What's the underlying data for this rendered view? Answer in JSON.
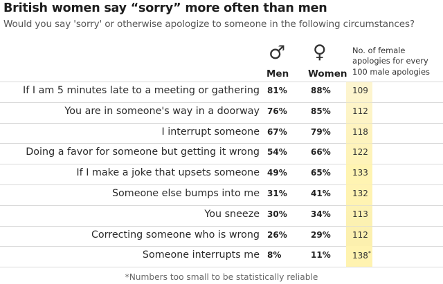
{
  "title": "British women say “sorry” more often than men",
  "subtitle": "Would you say 'sorry' or otherwise apologize to someone in the following circumstances?",
  "headers": {
    "men_symbol": "♂",
    "women_symbol": "♀",
    "men": "Men",
    "women": "Women",
    "ratio_line1": "No. of female",
    "ratio_line2": "apologies for every",
    "ratio_line3": "100 male apologies"
  },
  "footnote": "*Numbers too small to be statistically reliable",
  "colors": {
    "ratio_highlight": "#fff3b0",
    "ratio_band_top": "#fdf6dc",
    "ratio_band_bottom": "#fbeea6",
    "rule": "#d9d9d9"
  },
  "chart_data": {
    "type": "table",
    "columns": [
      "Men",
      "Women",
      "No. of female apologies for every 100 male apologies"
    ],
    "rows": [
      {
        "label": "If I am 5 minutes late to a meeting or gathering",
        "men": "81%",
        "women": "88%",
        "ratio": "109",
        "note": ""
      },
      {
        "label": "You are in someone's way in a doorway",
        "men": "76%",
        "women": "85%",
        "ratio": "112",
        "note": ""
      },
      {
        "label": "I interrupt someone",
        "men": "67%",
        "women": "79%",
        "ratio": "118",
        "note": ""
      },
      {
        "label": "Doing a favor for someone but getting it wrong",
        "men": "54%",
        "women": "66%",
        "ratio": "122",
        "note": ""
      },
      {
        "label": "If I make a joke that upsets someone",
        "men": "49%",
        "women": "65%",
        "ratio": "133",
        "note": ""
      },
      {
        "label": "Someone else bumps into me",
        "men": "31%",
        "women": "41%",
        "ratio": "132",
        "note": ""
      },
      {
        "label": "You sneeze",
        "men": "30%",
        "women": "34%",
        "ratio": "113",
        "note": ""
      },
      {
        "label": "Correcting someone who is wrong",
        "men": "26%",
        "women": "29%",
        "ratio": "112",
        "note": ""
      },
      {
        "label": "Someone interrupts me",
        "men": "8%",
        "women": "11%",
        "ratio": "138",
        "note": "*"
      }
    ]
  }
}
